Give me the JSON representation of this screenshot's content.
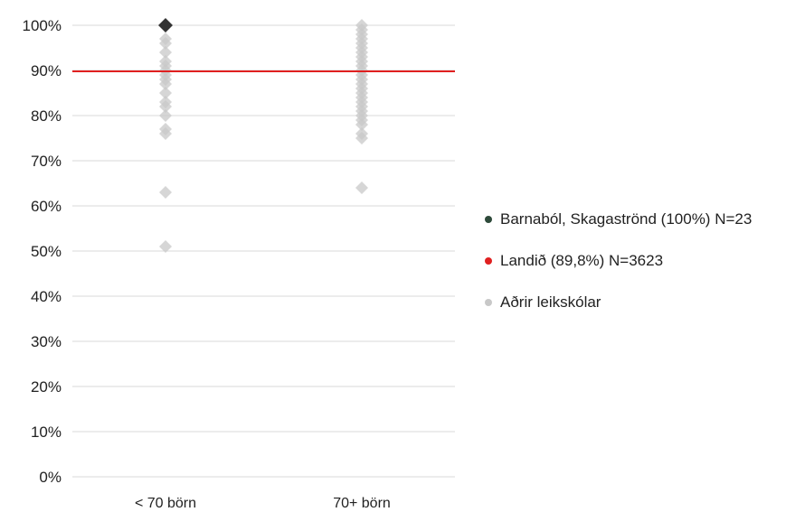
{
  "chart_data": {
    "type": "scatter",
    "categories": [
      "< 70 börn",
      "70+ börn"
    ],
    "ylim": [
      0,
      100
    ],
    "yticks": [
      "0%",
      "10%",
      "20%",
      "30%",
      "40%",
      "50%",
      "60%",
      "70%",
      "80%",
      "90%",
      "100%"
    ],
    "grid": true,
    "legend_position": "right",
    "reference_line": {
      "value": 89.8,
      "label": "Landið (89,8%) N=3623",
      "color": "#e02020"
    },
    "highlight": {
      "category": "< 70 börn",
      "value": 100,
      "label": "Barnaból, Skagaströnd (100%) N=23",
      "color": "#333333"
    },
    "series": [
      {
        "name": "Aðrir leikskólar",
        "color": "#c8c8c8",
        "points": [
          {
            "category": "< 70 börn",
            "values": [
              97,
              96,
              94,
              92,
              91,
              90,
              89,
              88,
              87,
              85,
              83,
              82,
              80,
              77,
              76,
              63,
              51
            ]
          },
          {
            "category": "70+ börn",
            "values": [
              100,
              99,
              98,
              97,
              96,
              95,
              94,
              93,
              92,
              91,
              90,
              89,
              88,
              87,
              86,
              85,
              84,
              83,
              82,
              81,
              80,
              79,
              78,
              76,
              75,
              64
            ]
          }
        ]
      }
    ],
    "legend": [
      {
        "label": "Barnaból, Skagaströnd (100%) N=23",
        "color": "#2e4a3a"
      },
      {
        "label": "Landið (89,8%) N=3623",
        "color": "#e02020"
      },
      {
        "label": "Aðrir leikskólar",
        "color": "#c8c8c8"
      }
    ]
  }
}
